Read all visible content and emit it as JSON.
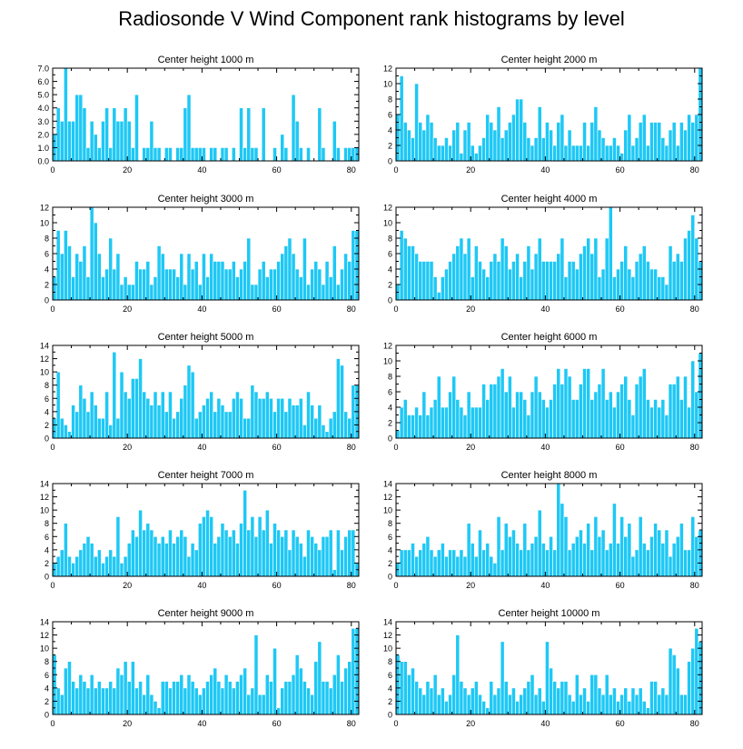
{
  "title": "Radiosonde V Wind Component rank histograms by level",
  "bar_color": "#1ec8f5",
  "chart_data": [
    {
      "type": "bar",
      "title": "Center height 1000 m",
      "xlim": [
        0,
        82
      ],
      "ylim": [
        0,
        7
      ],
      "yticks": [
        0,
        1,
        2,
        3,
        4,
        5,
        6,
        7
      ],
      "ytick_labels": [
        "0.0",
        "1.0",
        "2.0",
        "3.0",
        "4.0",
        "5.0",
        "6.0",
        "7.0"
      ],
      "xticks": [
        0,
        20,
        40,
        60,
        80
      ],
      "values": [
        2,
        4,
        3,
        7,
        3,
        3,
        5,
        5,
        4,
        1,
        3,
        2,
        1,
        3,
        4,
        1,
        4,
        3,
        3,
        4,
        3,
        1,
        5,
        0,
        1,
        1,
        3,
        1,
        1,
        0,
        1,
        1,
        0,
        1,
        1,
        4,
        5,
        1,
        1,
        1,
        1,
        0,
        1,
        1,
        0,
        1,
        1,
        0,
        1,
        0,
        4,
        1,
        4,
        1,
        1,
        0,
        4,
        0,
        0,
        1,
        0,
        2,
        1,
        0,
        5,
        3,
        1,
        0,
        1,
        0,
        0,
        4,
        1,
        0,
        0,
        3,
        1,
        0,
        1,
        1,
        1,
        1
      ]
    },
    {
      "type": "bar",
      "title": "Center height 2000 m",
      "xlim": [
        0,
        82
      ],
      "ylim": [
        0,
        12
      ],
      "yticks": [
        0,
        2,
        4,
        6,
        8,
        10,
        12
      ],
      "ytick_labels": [
        "0",
        "2",
        "4",
        "6",
        "8",
        "10",
        "12"
      ],
      "xticks": [
        0,
        20,
        40,
        60,
        80
      ],
      "values": [
        6,
        11,
        5,
        4,
        3,
        10,
        5,
        4,
        6,
        5,
        3,
        2,
        2,
        3,
        2,
        4,
        5,
        1,
        4,
        5,
        2,
        1,
        2,
        3,
        6,
        5,
        4,
        7,
        3,
        4,
        5,
        6,
        8,
        8,
        5,
        3,
        2,
        3,
        7,
        3,
        5,
        4,
        2,
        5,
        6,
        2,
        4,
        2,
        2,
        2,
        5,
        2,
        5,
        7,
        4,
        3,
        2,
        2,
        3,
        2,
        1,
        4,
        6,
        2,
        3,
        5,
        6,
        2,
        5,
        5,
        5,
        3,
        2,
        4,
        5,
        2,
        5,
        4,
        6,
        5,
        6,
        12
      ]
    },
    {
      "type": "bar",
      "title": "Center height 3000 m",
      "xlim": [
        0,
        82
      ],
      "ylim": [
        0,
        12
      ],
      "yticks": [
        0,
        2,
        4,
        6,
        8,
        10,
        12
      ],
      "ytick_labels": [
        "0",
        "2",
        "4",
        "6",
        "8",
        "10",
        "12"
      ],
      "xticks": [
        0,
        20,
        40,
        60,
        80
      ],
      "values": [
        3,
        9,
        6,
        9,
        7,
        3,
        6,
        5,
        7,
        3,
        12,
        10,
        6,
        3,
        4,
        8,
        4,
        6,
        2,
        3,
        2,
        2,
        5,
        4,
        4,
        5,
        2,
        3,
        7,
        6,
        4,
        4,
        4,
        3,
        6,
        2,
        6,
        4,
        5,
        2,
        6,
        3,
        6,
        5,
        5,
        5,
        4,
        4,
        5,
        3,
        4,
        5,
        8,
        2,
        2,
        4,
        5,
        3,
        4,
        4,
        5,
        6,
        7,
        8,
        6,
        4,
        3,
        8,
        2,
        4,
        5,
        4,
        2,
        5,
        3,
        7,
        2,
        4,
        6,
        5,
        9,
        9
      ]
    },
    {
      "type": "bar",
      "title": "Center height 4000 m",
      "xlim": [
        0,
        82
      ],
      "ylim": [
        0,
        12
      ],
      "yticks": [
        0,
        2,
        4,
        6,
        8,
        10,
        12
      ],
      "ytick_labels": [
        "0",
        "2",
        "4",
        "6",
        "8",
        "10",
        "12"
      ],
      "xticks": [
        0,
        20,
        40,
        60,
        80
      ],
      "values": [
        2,
        9,
        8,
        7,
        7,
        6,
        5,
        5,
        5,
        5,
        3,
        1,
        3,
        4,
        5,
        6,
        7,
        8,
        6,
        8,
        3,
        7,
        5,
        4,
        3,
        5,
        6,
        5,
        8,
        7,
        4,
        5,
        6,
        3,
        5,
        7,
        4,
        6,
        8,
        5,
        5,
        5,
        5,
        6,
        8,
        3,
        5,
        5,
        4,
        6,
        7,
        8,
        6,
        8,
        3,
        4,
        8,
        12,
        3,
        4,
        5,
        7,
        4,
        3,
        5,
        6,
        7,
        5,
        4,
        4,
        3,
        3,
        2,
        7,
        5,
        6,
        5,
        8,
        9,
        11,
        8,
        5
      ]
    },
    {
      "type": "bar",
      "title": "Center height 5000 m",
      "xlim": [
        0,
        82
      ],
      "ylim": [
        0,
        14
      ],
      "yticks": [
        0,
        2,
        4,
        6,
        8,
        10,
        12,
        14
      ],
      "ytick_labels": [
        "0",
        "2",
        "4",
        "6",
        "8",
        "10",
        "12",
        "14"
      ],
      "xticks": [
        0,
        20,
        40,
        60,
        80
      ],
      "values": [
        3,
        10,
        3,
        2,
        1,
        5,
        4,
        8,
        6,
        4,
        7,
        5,
        3,
        3,
        7,
        2,
        13,
        3,
        10,
        7,
        6,
        9,
        9,
        12,
        7,
        6,
        5,
        7,
        5,
        7,
        4,
        7,
        3,
        4,
        6,
        8,
        11,
        10,
        3,
        4,
        5,
        6,
        7,
        4,
        6,
        5,
        4,
        4,
        6,
        7,
        6,
        3,
        3,
        8,
        7,
        6,
        6,
        7,
        6,
        4,
        6,
        6,
        4,
        6,
        5,
        5,
        6,
        2,
        7,
        5,
        3,
        5,
        2,
        1,
        3,
        4,
        12,
        11,
        4,
        3,
        8,
        8
      ]
    },
    {
      "type": "bar",
      "title": "Center height 6000 m",
      "xlim": [
        0,
        82
      ],
      "ylim": [
        0,
        12
      ],
      "yticks": [
        0,
        2,
        4,
        6,
        8,
        10,
        12
      ],
      "ytick_labels": [
        "0",
        "2",
        "4",
        "6",
        "8",
        "10",
        "12"
      ],
      "xticks": [
        0,
        20,
        40,
        60,
        80
      ],
      "values": [
        1,
        4,
        5,
        3,
        3,
        4,
        3,
        6,
        3,
        4,
        5,
        8,
        4,
        4,
        6,
        8,
        5,
        4,
        3,
        6,
        4,
        4,
        4,
        7,
        5,
        7,
        7,
        8,
        9,
        6,
        8,
        4,
        6,
        6,
        5,
        3,
        6,
        8,
        6,
        5,
        4,
        5,
        7,
        9,
        7,
        9,
        8,
        5,
        5,
        7,
        9,
        9,
        5,
        6,
        7,
        9,
        5,
        6,
        4,
        6,
        7,
        8,
        5,
        3,
        7,
        8,
        9,
        5,
        4,
        5,
        4,
        5,
        3,
        7,
        7,
        8,
        5,
        8,
        4,
        10,
        6,
        11
      ]
    },
    {
      "type": "bar",
      "title": "Center height 7000 m",
      "xlim": [
        0,
        82
      ],
      "ylim": [
        0,
        14
      ],
      "yticks": [
        0,
        2,
        4,
        6,
        8,
        10,
        12,
        14
      ],
      "ytick_labels": [
        "0",
        "2",
        "4",
        "6",
        "8",
        "10",
        "12",
        "14"
      ],
      "xticks": [
        0,
        20,
        40,
        60,
        80
      ],
      "values": [
        2,
        3,
        4,
        8,
        3,
        2,
        3,
        4,
        5,
        6,
        5,
        3,
        4,
        2,
        3,
        4,
        3,
        9,
        2,
        3,
        5,
        7,
        6,
        10,
        7,
        8,
        7,
        6,
        5,
        6,
        5,
        7,
        5,
        6,
        7,
        6,
        3,
        5,
        4,
        8,
        9,
        10,
        9,
        5,
        6,
        8,
        7,
        6,
        7,
        5,
        8,
        13,
        7,
        9,
        6,
        9,
        7,
        10,
        5,
        8,
        7,
        6,
        7,
        4,
        7,
        6,
        5,
        3,
        7,
        6,
        5,
        4,
        6,
        6,
        7,
        1,
        7,
        4,
        6,
        7,
        7,
        2
      ]
    },
    {
      "type": "bar",
      "title": "Center height 8000 m",
      "xlim": [
        0,
        82
      ],
      "ylim": [
        0,
        14
      ],
      "yticks": [
        0,
        2,
        4,
        6,
        8,
        10,
        12,
        14
      ],
      "ytick_labels": [
        "0",
        "2",
        "4",
        "6",
        "8",
        "10",
        "12",
        "14"
      ],
      "xticks": [
        0,
        20,
        40,
        60,
        80
      ],
      "values": [
        2,
        4,
        4,
        4,
        5,
        3,
        4,
        5,
        6,
        4,
        3,
        4,
        5,
        3,
        4,
        4,
        3,
        4,
        3,
        8,
        5,
        3,
        7,
        4,
        5,
        3,
        2,
        9,
        4,
        8,
        6,
        7,
        5,
        4,
        8,
        4,
        5,
        6,
        10,
        5,
        4,
        6,
        4,
        14,
        11,
        9,
        4,
        5,
        6,
        7,
        5,
        8,
        4,
        9,
        6,
        7,
        4,
        5,
        11,
        5,
        9,
        6,
        8,
        3,
        4,
        9,
        5,
        4,
        6,
        8,
        7,
        5,
        7,
        3,
        5,
        6,
        8,
        4,
        4,
        9,
        6,
        7
      ]
    },
    {
      "type": "bar",
      "title": "Center height 9000 m",
      "xlim": [
        0,
        82
      ],
      "ylim": [
        0,
        14
      ],
      "yticks": [
        0,
        2,
        4,
        6,
        8,
        10,
        12,
        14
      ],
      "ytick_labels": [
        "0",
        "2",
        "4",
        "6",
        "8",
        "10",
        "12",
        "14"
      ],
      "xticks": [
        0,
        20,
        40,
        60,
        80
      ],
      "values": [
        9,
        4,
        3,
        7,
        8,
        5,
        4,
        6,
        5,
        4,
        6,
        4,
        5,
        4,
        4,
        5,
        4,
        7,
        6,
        8,
        5,
        8,
        4,
        5,
        3,
        6,
        3,
        2,
        1,
        5,
        5,
        4,
        5,
        5,
        6,
        4,
        6,
        5,
        4,
        3,
        4,
        5,
        6,
        7,
        5,
        4,
        6,
        5,
        4,
        5,
        6,
        7,
        3,
        4,
        12,
        3,
        3,
        6,
        5,
        10,
        1,
        4,
        5,
        5,
        6,
        9,
        7,
        5,
        4,
        3,
        8,
        11,
        5,
        5,
        4,
        6,
        9,
        5,
        7,
        8,
        13,
        13
      ]
    },
    {
      "type": "bar",
      "title": "Center height 10000 m",
      "xlim": [
        0,
        82
      ],
      "ylim": [
        0,
        14
      ],
      "yticks": [
        0,
        2,
        4,
        6,
        8,
        10,
        12,
        14
      ],
      "ytick_labels": [
        "0",
        "2",
        "4",
        "6",
        "8",
        "10",
        "12",
        "14"
      ],
      "xticks": [
        0,
        20,
        40,
        60,
        80
      ],
      "values": [
        9,
        8,
        8,
        6,
        7,
        5,
        4,
        3,
        5,
        4,
        6,
        3,
        4,
        2,
        3,
        6,
        12,
        5,
        4,
        3,
        4,
        5,
        3,
        2,
        1,
        5,
        3,
        4,
        11,
        5,
        3,
        4,
        2,
        3,
        4,
        5,
        6,
        3,
        4,
        2,
        11,
        7,
        5,
        4,
        5,
        5,
        3,
        2,
        6,
        3,
        4,
        2,
        6,
        6,
        4,
        3,
        6,
        3,
        4,
        2,
        3,
        4,
        2,
        4,
        3,
        4,
        2,
        1,
        5,
        5,
        3,
        4,
        3,
        10,
        9,
        7,
        3,
        3,
        8,
        10,
        13,
        11
      ]
    }
  ]
}
